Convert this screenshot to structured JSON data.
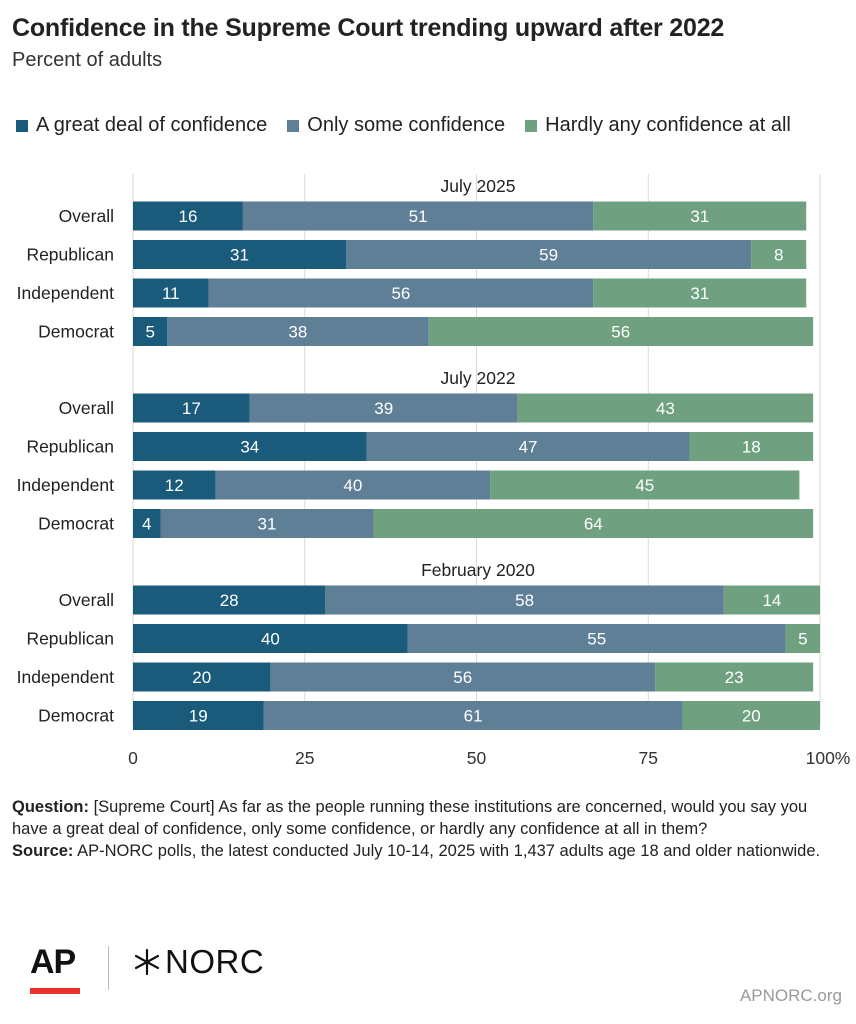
{
  "title": "Confidence in the Supreme Court trending upward after 2022",
  "subtitle": "Percent of adults",
  "colors": {
    "great": "#1a5a7a",
    "some": "#5f7f96",
    "hardly": "#6fa080",
    "grid": "#d9d9d9",
    "label": "#ffffff"
  },
  "legend": [
    {
      "label": "A great deal of confidence",
      "color": "#1a5a7a"
    },
    {
      "label": "Only some confidence",
      "color": "#5f7f96"
    },
    {
      "label": "Hardly any confidence at all",
      "color": "#6fa080"
    }
  ],
  "chart_data": {
    "type": "bar",
    "orientation": "horizontal",
    "stacked": true,
    "title": "Confidence in the Supreme Court trending upward after 2022",
    "subtitle": "Percent of adults",
    "xlim": [
      0,
      100
    ],
    "xticks": [
      "0",
      "25",
      "50",
      "75",
      "100%"
    ],
    "grid": true,
    "legend_position": "top",
    "series_names": [
      "A great deal of confidence",
      "Only some confidence",
      "Hardly any confidence at all"
    ],
    "groups": [
      {
        "name": "July 2025",
        "rows": [
          {
            "label": "Overall",
            "values": [
              16,
              51,
              31
            ]
          },
          {
            "label": "Republican",
            "values": [
              31,
              59,
              8
            ]
          },
          {
            "label": "Independent",
            "values": [
              11,
              56,
              31
            ]
          },
          {
            "label": "Democrat",
            "values": [
              5,
              38,
              56
            ]
          }
        ]
      },
      {
        "name": "July 2022",
        "rows": [
          {
            "label": "Overall",
            "values": [
              17,
              39,
              43
            ]
          },
          {
            "label": "Republican",
            "values": [
              34,
              47,
              18
            ]
          },
          {
            "label": "Independent",
            "values": [
              12,
              40,
              45
            ]
          },
          {
            "label": "Democrat",
            "values": [
              4,
              31,
              64
            ]
          }
        ]
      },
      {
        "name": "February 2020",
        "rows": [
          {
            "label": "Overall",
            "values": [
              28,
              58,
              14
            ]
          },
          {
            "label": "Republican",
            "values": [
              40,
              55,
              5
            ]
          },
          {
            "label": "Independent",
            "values": [
              20,
              56,
              23
            ]
          },
          {
            "label": "Democrat",
            "values": [
              19,
              61,
              20
            ]
          }
        ]
      }
    ]
  },
  "footer": {
    "question_label": "Question:",
    "question_text": "[Supreme Court] As far as the people running these institutions are concerned, would you say you have a great deal of confidence, only some confidence, or hardly any confidence at all in them?",
    "source_label": "Source:",
    "source_text": "AP-NORC polls, the latest conducted July 10-14, 2025 with 1,437 adults age 18 and older nationwide."
  },
  "logos": {
    "ap": "AP",
    "norc": "NORC",
    "norc_icon": "star-burst-icon"
  },
  "site": "APNORC.org"
}
